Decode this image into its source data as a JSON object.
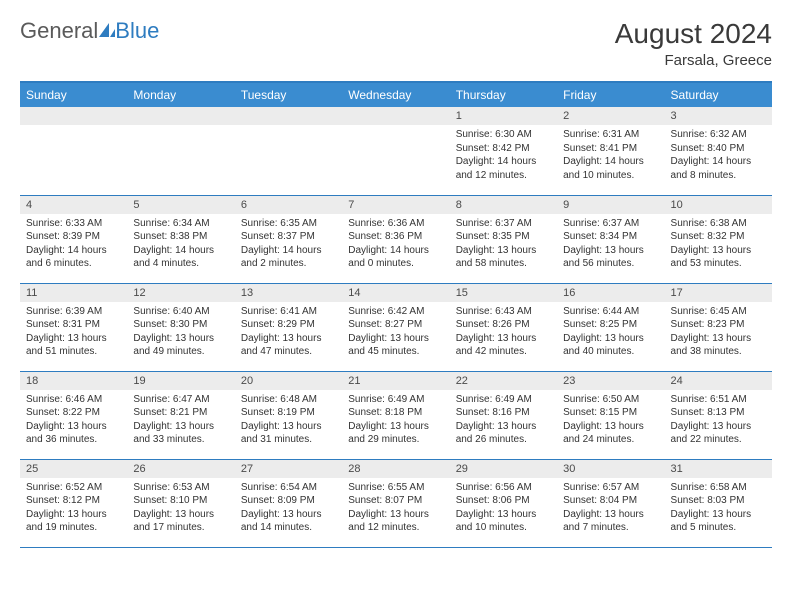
{
  "brand": {
    "general": "General",
    "blue": "Blue"
  },
  "title": "August 2024",
  "location": "Farsala, Greece",
  "colors": {
    "header_bg": "#3a8cd0",
    "header_text": "#ffffff",
    "rule": "#2e7cc0",
    "band": "#ececec",
    "body_text": "#333333",
    "logo_gray": "#5a5a5a",
    "logo_blue": "#2e7cc0"
  },
  "daysOfWeek": [
    "Sunday",
    "Monday",
    "Tuesday",
    "Wednesday",
    "Thursday",
    "Friday",
    "Saturday"
  ],
  "weeks": [
    [
      {
        "n": "",
        "empty": true
      },
      {
        "n": "",
        "empty": true
      },
      {
        "n": "",
        "empty": true
      },
      {
        "n": "",
        "empty": true
      },
      {
        "n": "1",
        "sunrise": "6:30 AM",
        "sunset": "8:42 PM",
        "daylight": "14 hours and 12 minutes."
      },
      {
        "n": "2",
        "sunrise": "6:31 AM",
        "sunset": "8:41 PM",
        "daylight": "14 hours and 10 minutes."
      },
      {
        "n": "3",
        "sunrise": "6:32 AM",
        "sunset": "8:40 PM",
        "daylight": "14 hours and 8 minutes."
      }
    ],
    [
      {
        "n": "4",
        "sunrise": "6:33 AM",
        "sunset": "8:39 PM",
        "daylight": "14 hours and 6 minutes."
      },
      {
        "n": "5",
        "sunrise": "6:34 AM",
        "sunset": "8:38 PM",
        "daylight": "14 hours and 4 minutes."
      },
      {
        "n": "6",
        "sunrise": "6:35 AM",
        "sunset": "8:37 PM",
        "daylight": "14 hours and 2 minutes."
      },
      {
        "n": "7",
        "sunrise": "6:36 AM",
        "sunset": "8:36 PM",
        "daylight": "14 hours and 0 minutes."
      },
      {
        "n": "8",
        "sunrise": "6:37 AM",
        "sunset": "8:35 PM",
        "daylight": "13 hours and 58 minutes."
      },
      {
        "n": "9",
        "sunrise": "6:37 AM",
        "sunset": "8:34 PM",
        "daylight": "13 hours and 56 minutes."
      },
      {
        "n": "10",
        "sunrise": "6:38 AM",
        "sunset": "8:32 PM",
        "daylight": "13 hours and 53 minutes."
      }
    ],
    [
      {
        "n": "11",
        "sunrise": "6:39 AM",
        "sunset": "8:31 PM",
        "daylight": "13 hours and 51 minutes."
      },
      {
        "n": "12",
        "sunrise": "6:40 AM",
        "sunset": "8:30 PM",
        "daylight": "13 hours and 49 minutes."
      },
      {
        "n": "13",
        "sunrise": "6:41 AM",
        "sunset": "8:29 PM",
        "daylight": "13 hours and 47 minutes."
      },
      {
        "n": "14",
        "sunrise": "6:42 AM",
        "sunset": "8:27 PM",
        "daylight": "13 hours and 45 minutes."
      },
      {
        "n": "15",
        "sunrise": "6:43 AM",
        "sunset": "8:26 PM",
        "daylight": "13 hours and 42 minutes."
      },
      {
        "n": "16",
        "sunrise": "6:44 AM",
        "sunset": "8:25 PM",
        "daylight": "13 hours and 40 minutes."
      },
      {
        "n": "17",
        "sunrise": "6:45 AM",
        "sunset": "8:23 PM",
        "daylight": "13 hours and 38 minutes."
      }
    ],
    [
      {
        "n": "18",
        "sunrise": "6:46 AM",
        "sunset": "8:22 PM",
        "daylight": "13 hours and 36 minutes."
      },
      {
        "n": "19",
        "sunrise": "6:47 AM",
        "sunset": "8:21 PM",
        "daylight": "13 hours and 33 minutes."
      },
      {
        "n": "20",
        "sunrise": "6:48 AM",
        "sunset": "8:19 PM",
        "daylight": "13 hours and 31 minutes."
      },
      {
        "n": "21",
        "sunrise": "6:49 AM",
        "sunset": "8:18 PM",
        "daylight": "13 hours and 29 minutes."
      },
      {
        "n": "22",
        "sunrise": "6:49 AM",
        "sunset": "8:16 PM",
        "daylight": "13 hours and 26 minutes."
      },
      {
        "n": "23",
        "sunrise": "6:50 AM",
        "sunset": "8:15 PM",
        "daylight": "13 hours and 24 minutes."
      },
      {
        "n": "24",
        "sunrise": "6:51 AM",
        "sunset": "8:13 PM",
        "daylight": "13 hours and 22 minutes."
      }
    ],
    [
      {
        "n": "25",
        "sunrise": "6:52 AM",
        "sunset": "8:12 PM",
        "daylight": "13 hours and 19 minutes."
      },
      {
        "n": "26",
        "sunrise": "6:53 AM",
        "sunset": "8:10 PM",
        "daylight": "13 hours and 17 minutes."
      },
      {
        "n": "27",
        "sunrise": "6:54 AM",
        "sunset": "8:09 PM",
        "daylight": "13 hours and 14 minutes."
      },
      {
        "n": "28",
        "sunrise": "6:55 AM",
        "sunset": "8:07 PM",
        "daylight": "13 hours and 12 minutes."
      },
      {
        "n": "29",
        "sunrise": "6:56 AM",
        "sunset": "8:06 PM",
        "daylight": "13 hours and 10 minutes."
      },
      {
        "n": "30",
        "sunrise": "6:57 AM",
        "sunset": "8:04 PM",
        "daylight": "13 hours and 7 minutes."
      },
      {
        "n": "31",
        "sunrise": "6:58 AM",
        "sunset": "8:03 PM",
        "daylight": "13 hours and 5 minutes."
      }
    ]
  ]
}
